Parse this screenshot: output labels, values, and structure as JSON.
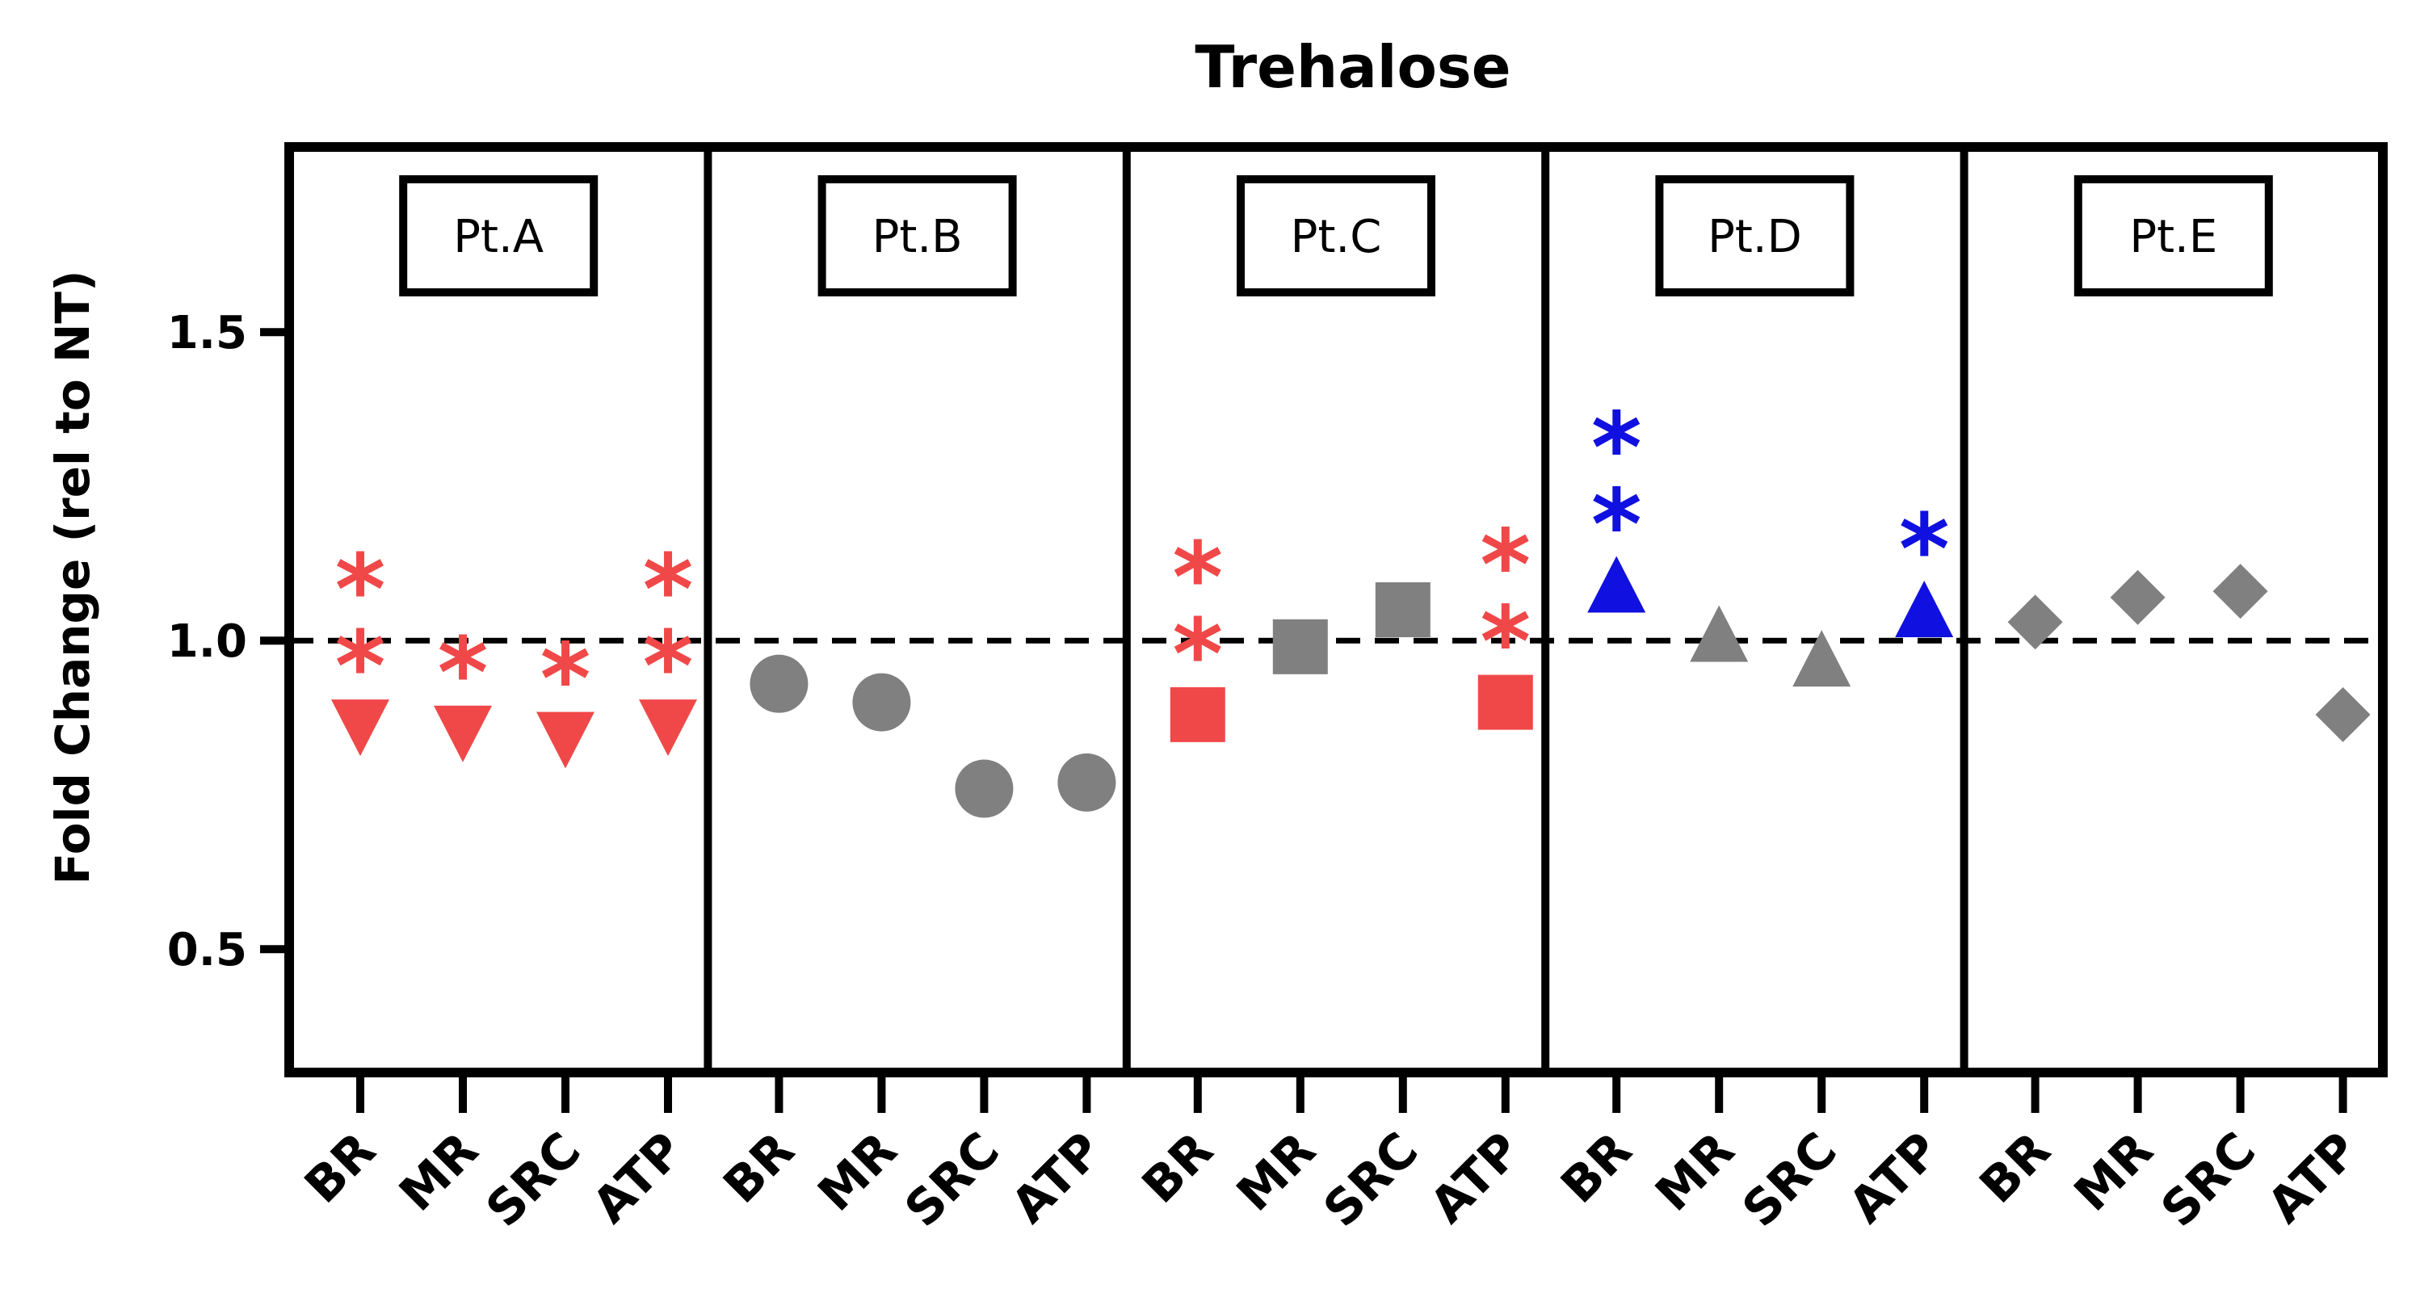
{
  "chart_data": {
    "type": "scatter",
    "title": "Trehalose",
    "ylabel": "Fold Change (rel to NT)",
    "xlabel": "",
    "ylim": [
      0.3,
      1.8
    ],
    "yticks": [
      0.5,
      1.0,
      1.5
    ],
    "ytick_labels": [
      "0.5",
      "1.0",
      "1.5"
    ],
    "reference_line": 1.0,
    "categories": [
      "BR",
      "MR",
      "SRC",
      "ATP"
    ],
    "panels": [
      {
        "label": "Pt.A",
        "marker": "triangle-down",
        "values": [
          0.86,
          0.85,
          0.84,
          0.86
        ],
        "colors": [
          "#f04848",
          "#f04848",
          "#f04848",
          "#f04848"
        ],
        "significance": [
          "**",
          "*",
          "*",
          "**"
        ],
        "sig_color": "#f04848"
      },
      {
        "label": "Pt.B",
        "marker": "circle",
        "values": [
          0.93,
          0.9,
          0.76,
          0.77
        ],
        "colors": [
          "#808080",
          "#808080",
          "#808080",
          "#808080"
        ],
        "significance": [
          "",
          "",
          "",
          ""
        ],
        "sig_color": "#f04848"
      },
      {
        "label": "Pt.C",
        "marker": "square",
        "values": [
          0.88,
          0.99,
          1.05,
          0.9
        ],
        "colors": [
          "#f04848",
          "#808080",
          "#808080",
          "#f04848"
        ],
        "significance": [
          "**",
          "",
          "",
          "**"
        ],
        "sig_color": "#f04848"
      },
      {
        "label": "Pt.D",
        "marker": "triangle-up",
        "values": [
          1.09,
          1.01,
          0.97,
          1.05
        ],
        "colors": [
          "#1010e0",
          "#808080",
          "#808080",
          "#1010e0"
        ],
        "significance": [
          "**",
          "",
          "",
          "*"
        ],
        "sig_color": "#1010e0"
      },
      {
        "label": "Pt.E",
        "marker": "diamond",
        "values": [
          1.03,
          1.07,
          1.08,
          0.88
        ],
        "colors": [
          "#808080",
          "#808080",
          "#808080",
          "#808080"
        ],
        "significance": [
          "",
          "",
          "",
          ""
        ],
        "sig_color": "#808080"
      }
    ]
  }
}
